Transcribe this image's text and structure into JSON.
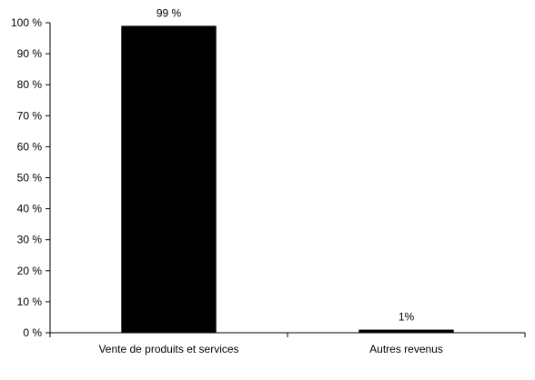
{
  "chart_data": {
    "type": "bar",
    "title": "",
    "xlabel": "",
    "ylabel": "",
    "categories": [
      "Vente de produits et services",
      "Autres revenus"
    ],
    "values": [
      99,
      1
    ],
    "data_labels": [
      "99 %",
      "1%"
    ],
    "ylim": [
      0,
      100
    ],
    "y_ticks": [
      0,
      10,
      20,
      30,
      40,
      50,
      60,
      70,
      80,
      90,
      100
    ],
    "y_tick_labels": [
      "0 %",
      "10 %",
      "20 %",
      "30 %",
      "40 %",
      "50 %",
      "60 %",
      "70 %",
      "80 %",
      "90 %",
      "100 %"
    ],
    "grid": false,
    "legend": "none",
    "bar_color": "#000000"
  }
}
